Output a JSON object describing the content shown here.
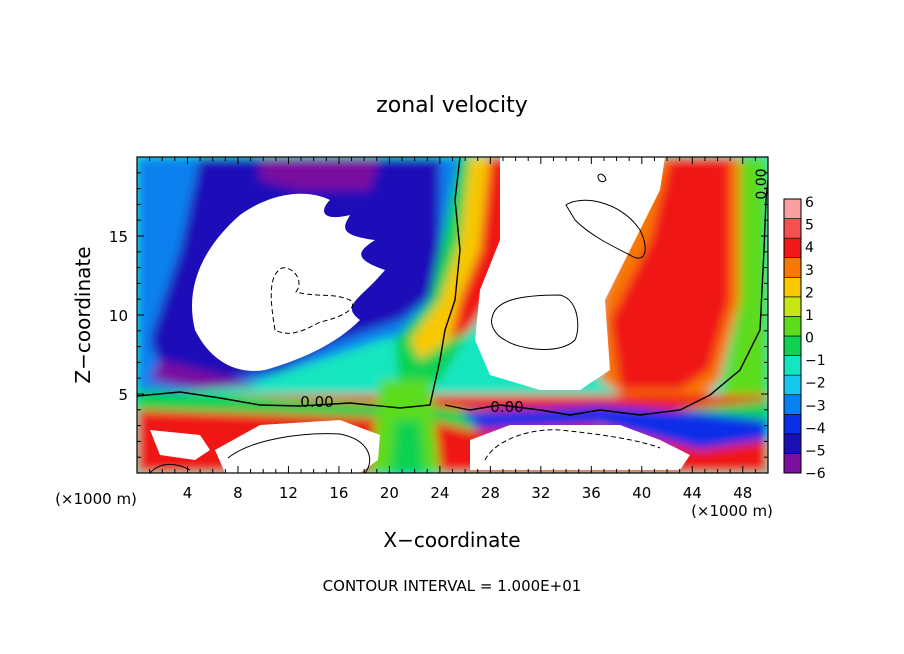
{
  "chart_data": {
    "type": "heatmap",
    "title": "zonal velocity",
    "xlabel": "X−coordinate",
    "ylabel": "Z−coordinate",
    "x_unit_left": "(×1000 m)",
    "x_unit_right": "(×1000 m)",
    "footnote": "CONTOUR INTERVAL = 1.000E+01",
    "xlim": [
      0,
      50
    ],
    "ylim": [
      0,
      20
    ],
    "x_ticks": [
      4,
      8,
      12,
      16,
      20,
      24,
      28,
      32,
      36,
      40,
      44,
      48
    ],
    "x_tick_labels": [
      "4",
      "8",
      "12",
      "16",
      "20",
      "24",
      "28",
      "32",
      "36",
      "40",
      "44",
      "48"
    ],
    "y_ticks": [
      5,
      10,
      15
    ],
    "y_tick_labels": [
      "5",
      "10",
      "15"
    ],
    "colorbar": {
      "levels": [
        -6,
        -5,
        -4,
        -3,
        -2,
        -1,
        0,
        1,
        2,
        3,
        4,
        5,
        6
      ],
      "labels": [
        "−6",
        "−5",
        "−4",
        "−3",
        "−2",
        "−1",
        "0",
        "1",
        "2",
        "3",
        "4",
        "5",
        "6"
      ],
      "colors": [
        "#7a0fa0",
        "#1a10b8",
        "#0a2ee8",
        "#0a80f0",
        "#16c8f0",
        "#16e6c0",
        "#0ed250",
        "#5cdc1c",
        "#c8e614",
        "#f8c800",
        "#f87800",
        "#f01818",
        "#f85050",
        "#f8a0a0"
      ]
    },
    "contour_labels": [
      {
        "text": "0.00",
        "x": 15.7,
        "z": 4.5
      },
      {
        "text": "0.00",
        "x": 30.2,
        "z": 4.2
      },
      {
        "text": "0.00",
        "x": 48.8,
        "z": 18.3
      }
    ],
    "notes": "shaded field clipped above +6 and below -6 (white regions)"
  }
}
